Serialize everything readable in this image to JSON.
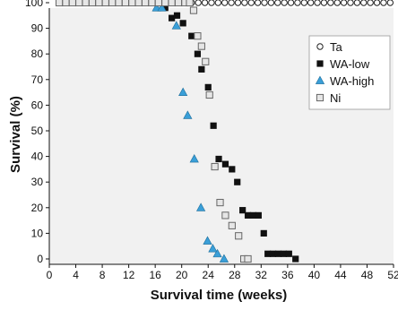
{
  "chart_data": {
    "type": "scatter",
    "xlabel": "Survival time (weeks)",
    "ylabel": "Survival (%)",
    "xlim": [
      0,
      52
    ],
    "ylim": [
      0,
      100
    ],
    "x_ticks": [
      0,
      4,
      8,
      12,
      16,
      20,
      24,
      28,
      32,
      36,
      40,
      44,
      48,
      52
    ],
    "y_ticks": [
      0,
      10,
      20,
      30,
      40,
      50,
      60,
      70,
      80,
      90,
      100
    ],
    "grid": false,
    "legend_position": "top-right",
    "series": [
      {
        "name": "Ta",
        "marker": "open-circle",
        "color": "#222222",
        "x": [
          1.5,
          2.5,
          3.5,
          4.5,
          5.5,
          6.5,
          7.5,
          8.5,
          9.5,
          10.5,
          11.5,
          12.5,
          13.5,
          14.5,
          15.5,
          16.5,
          17.5,
          18.5,
          19.5,
          20.5,
          21.5,
          22.5,
          23.5,
          24.5,
          25.5,
          26.5,
          27.5,
          28.5,
          29.5,
          30.5,
          31.5,
          32.5,
          33.5,
          34.5,
          35.5,
          36.5,
          37.5,
          38.5,
          39.5,
          40.5,
          41.5,
          42.5,
          43.5,
          44.5,
          45.5,
          46.5,
          47.5,
          48.5,
          49.5,
          50.5,
          51.5
        ],
        "y": [
          100,
          100,
          100,
          100,
          100,
          100,
          100,
          100,
          100,
          100,
          100,
          100,
          100,
          100,
          100,
          100,
          100,
          100,
          100,
          100,
          100,
          100,
          100,
          100,
          100,
          100,
          100,
          100,
          100,
          100,
          100,
          100,
          100,
          100,
          100,
          100,
          100,
          100,
          100,
          100,
          100,
          100,
          100,
          100,
          100,
          100,
          100,
          100,
          100,
          100,
          100
        ]
      },
      {
        "name": "WA-low",
        "marker": "filled-square",
        "color": "#111111",
        "x": [
          17.5,
          18.5,
          19.3,
          20.2,
          21.5,
          22.4,
          23.0,
          24.0,
          24.8,
          25.6,
          26.6,
          27.6,
          28.4,
          29.2,
          30.0,
          30.8,
          31.6,
          32.4,
          33.0,
          33.8,
          34.6,
          35.4,
          36.2,
          37.2
        ],
        "y": [
          98,
          94,
          95,
          92,
          87,
          80,
          74,
          67,
          52,
          39,
          37,
          35,
          30,
          19,
          17,
          17,
          17,
          10,
          2,
          2,
          2,
          2,
          2,
          0
        ]
      },
      {
        "name": "WA-high",
        "marker": "filled-triangle",
        "color": "#3a9fd8",
        "x": [
          16.2,
          17.0,
          19.2,
          20.2,
          20.9,
          21.9,
          22.9,
          23.9,
          24.7,
          25.4,
          26.4
        ],
        "y": [
          98,
          98,
          91,
          65,
          56,
          39,
          20,
          7,
          4,
          2,
          0
        ]
      },
      {
        "name": "Ni",
        "marker": "open-square",
        "color": "#666666",
        "x": [
          1.5,
          2.5,
          3.5,
          4.5,
          5.5,
          6.5,
          7.5,
          8.5,
          9.5,
          10.5,
          11.5,
          12.5,
          13.5,
          14.5,
          15.5,
          16.5,
          17.5,
          18.5,
          19.5,
          20.5,
          21.2,
          21.8,
          22.4,
          23.0,
          23.6,
          24.2,
          25.0,
          25.8,
          26.6,
          27.6,
          28.6,
          29.4,
          30.0
        ],
        "y": [
          100,
          100,
          100,
          100,
          100,
          100,
          100,
          100,
          100,
          100,
          100,
          100,
          100,
          100,
          100,
          100,
          100,
          100,
          100,
          100,
          100,
          97,
          87,
          83,
          77,
          64,
          36,
          22,
          17,
          13,
          9,
          0,
          0
        ]
      }
    ]
  }
}
